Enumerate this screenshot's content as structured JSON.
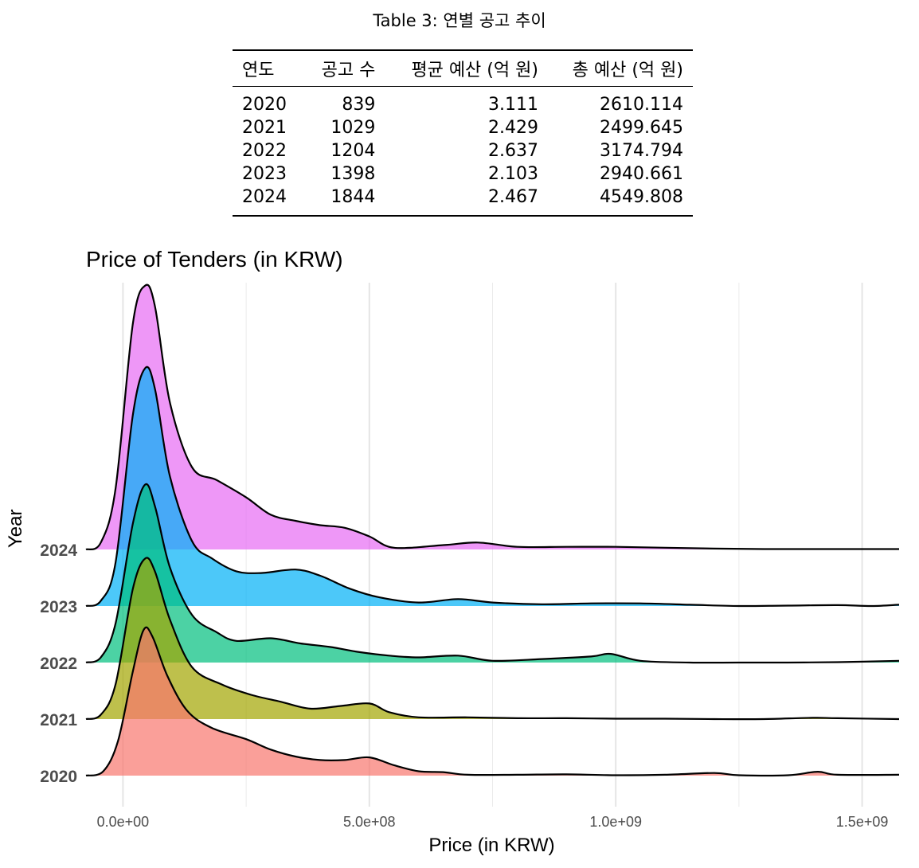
{
  "table": {
    "caption": "Table 3: 연별 공고 추이",
    "columns": [
      "연도",
      "공고 수",
      "평균 예산 (억 원)",
      "총 예산 (억 원)"
    ],
    "rows": [
      [
        "2020",
        "839",
        "3.111",
        "2610.114"
      ],
      [
        "2021",
        "1029",
        "2.429",
        "2499.645"
      ],
      [
        "2022",
        "1204",
        "2.637",
        "3174.794"
      ],
      [
        "2023",
        "1398",
        "2.103",
        "2940.661"
      ],
      [
        "2024",
        "1844",
        "2.467",
        "4549.808"
      ]
    ]
  },
  "chart_data": {
    "type": "area",
    "subtype": "ridgeline",
    "title": "Price of Tenders (in KRW)",
    "xlabel": "Price (in KRW)",
    "ylabel": "Year",
    "xlim": [
      -75000000,
      1575000000
    ],
    "x_ticks": [
      0,
      500000000,
      1000000000,
      1500000000
    ],
    "x_tick_labels": [
      "0.0e+00",
      "5.0e+08",
      "1.0e+09",
      "1.5e+09"
    ],
    "categories": [
      "2020",
      "2021",
      "2022",
      "2023",
      "2024"
    ],
    "grid": true,
    "series": [
      {
        "name": "2020",
        "color": "#F8766D",
        "density": [
          [
            -75000000,
            0
          ],
          [
            -40000000,
            0.05
          ],
          [
            -10000000,
            0.4
          ],
          [
            20000000,
            1.2
          ],
          [
            42000000,
            1.68
          ],
          [
            60000000,
            1.6
          ],
          [
            90000000,
            1.15
          ],
          [
            130000000,
            0.75
          ],
          [
            180000000,
            0.55
          ],
          [
            250000000,
            0.42
          ],
          [
            300000000,
            0.3
          ],
          [
            350000000,
            0.22
          ],
          [
            400000000,
            0.18
          ],
          [
            450000000,
            0.18
          ],
          [
            500000000,
            0.21
          ],
          [
            550000000,
            0.12
          ],
          [
            600000000,
            0.05
          ],
          [
            650000000,
            0.04
          ],
          [
            700000000,
            0.01
          ],
          [
            800000000,
            0.01
          ],
          [
            900000000,
            0.015
          ],
          [
            1000000000,
            0.005
          ],
          [
            1100000000,
            0.01
          ],
          [
            1200000000,
            0.03
          ],
          [
            1250000000,
            0.005
          ],
          [
            1350000000,
            0.005
          ],
          [
            1410000000,
            0.045
          ],
          [
            1450000000,
            0.01
          ],
          [
            1575000000,
            0.01
          ]
        ]
      },
      {
        "name": "2021",
        "color": "#A3A500",
        "density": [
          [
            -75000000,
            0
          ],
          [
            -45000000,
            0.05
          ],
          [
            -15000000,
            0.4
          ],
          [
            20000000,
            1.5
          ],
          [
            45000000,
            1.85
          ],
          [
            65000000,
            1.7
          ],
          [
            95000000,
            1.15
          ],
          [
            140000000,
            0.6
          ],
          [
            200000000,
            0.4
          ],
          [
            260000000,
            0.28
          ],
          [
            320000000,
            0.2
          ],
          [
            380000000,
            0.12
          ],
          [
            440000000,
            0.15
          ],
          [
            500000000,
            0.18
          ],
          [
            540000000,
            0.08
          ],
          [
            600000000,
            0.02
          ],
          [
            700000000,
            0.02
          ],
          [
            800000000,
            0.01
          ],
          [
            900000000,
            0.01
          ],
          [
            1000000000,
            0.005
          ],
          [
            1100000000,
            0.005
          ],
          [
            1200000000,
            0.0
          ],
          [
            1300000000,
            0.0
          ],
          [
            1400000000,
            0.015
          ],
          [
            1450000000,
            0.01
          ],
          [
            1575000000,
            0.0
          ]
        ]
      },
      {
        "name": "2022",
        "color": "#00BF7D",
        "density": [
          [
            -75000000,
            0
          ],
          [
            -45000000,
            0.06
          ],
          [
            -15000000,
            0.45
          ],
          [
            20000000,
            1.6
          ],
          [
            45000000,
            2.05
          ],
          [
            65000000,
            1.8
          ],
          [
            95000000,
            1.1
          ],
          [
            140000000,
            0.55
          ],
          [
            190000000,
            0.35
          ],
          [
            230000000,
            0.25
          ],
          [
            300000000,
            0.28
          ],
          [
            360000000,
            0.22
          ],
          [
            420000000,
            0.18
          ],
          [
            480000000,
            0.12
          ],
          [
            540000000,
            0.08
          ],
          [
            600000000,
            0.06
          ],
          [
            680000000,
            0.08
          ],
          [
            750000000,
            0.02
          ],
          [
            850000000,
            0.04
          ],
          [
            950000000,
            0.07
          ],
          [
            990000000,
            0.1
          ],
          [
            1050000000,
            0.02
          ],
          [
            1150000000,
            0.0
          ],
          [
            1250000000,
            0.0
          ],
          [
            1350000000,
            0.0
          ],
          [
            1450000000,
            0.005
          ],
          [
            1575000000,
            0.02
          ]
        ]
      },
      {
        "name": "2023",
        "color": "#00B0F6",
        "density": [
          [
            -75000000,
            0
          ],
          [
            -45000000,
            0.06
          ],
          [
            -15000000,
            0.5
          ],
          [
            20000000,
            2.2
          ],
          [
            45000000,
            2.74
          ],
          [
            65000000,
            2.5
          ],
          [
            95000000,
            1.5
          ],
          [
            140000000,
            0.75
          ],
          [
            180000000,
            0.55
          ],
          [
            230000000,
            0.4
          ],
          [
            280000000,
            0.38
          ],
          [
            350000000,
            0.42
          ],
          [
            400000000,
            0.35
          ],
          [
            460000000,
            0.2
          ],
          [
            520000000,
            0.1
          ],
          [
            600000000,
            0.04
          ],
          [
            680000000,
            0.08
          ],
          [
            750000000,
            0.04
          ],
          [
            850000000,
            0.02
          ],
          [
            950000000,
            0.03
          ],
          [
            1050000000,
            0.03
          ],
          [
            1150000000,
            0.015
          ],
          [
            1250000000,
            0.0
          ],
          [
            1350000000,
            0.005
          ],
          [
            1450000000,
            0.01
          ],
          [
            1520000000,
            0.0
          ],
          [
            1575000000,
            0.015
          ]
        ]
      },
      {
        "name": "2024",
        "color": "#E76BF3",
        "density": [
          [
            -75000000,
            0
          ],
          [
            -45000000,
            0.08
          ],
          [
            -15000000,
            0.7
          ],
          [
            20000000,
            2.6
          ],
          [
            45000000,
            3.04
          ],
          [
            65000000,
            2.8
          ],
          [
            95000000,
            1.7
          ],
          [
            140000000,
            0.95
          ],
          [
            190000000,
            0.8
          ],
          [
            250000000,
            0.6
          ],
          [
            300000000,
            0.4
          ],
          [
            350000000,
            0.33
          ],
          [
            400000000,
            0.28
          ],
          [
            450000000,
            0.25
          ],
          [
            500000000,
            0.15
          ],
          [
            550000000,
            0.02
          ],
          [
            650000000,
            0.05
          ],
          [
            720000000,
            0.08
          ],
          [
            800000000,
            0.03
          ],
          [
            900000000,
            0.03
          ],
          [
            1000000000,
            0.03
          ],
          [
            1100000000,
            0.02
          ],
          [
            1200000000,
            0.01
          ],
          [
            1300000000,
            0.005
          ],
          [
            1400000000,
            0.005
          ],
          [
            1575000000,
            0.005
          ]
        ]
      }
    ]
  }
}
